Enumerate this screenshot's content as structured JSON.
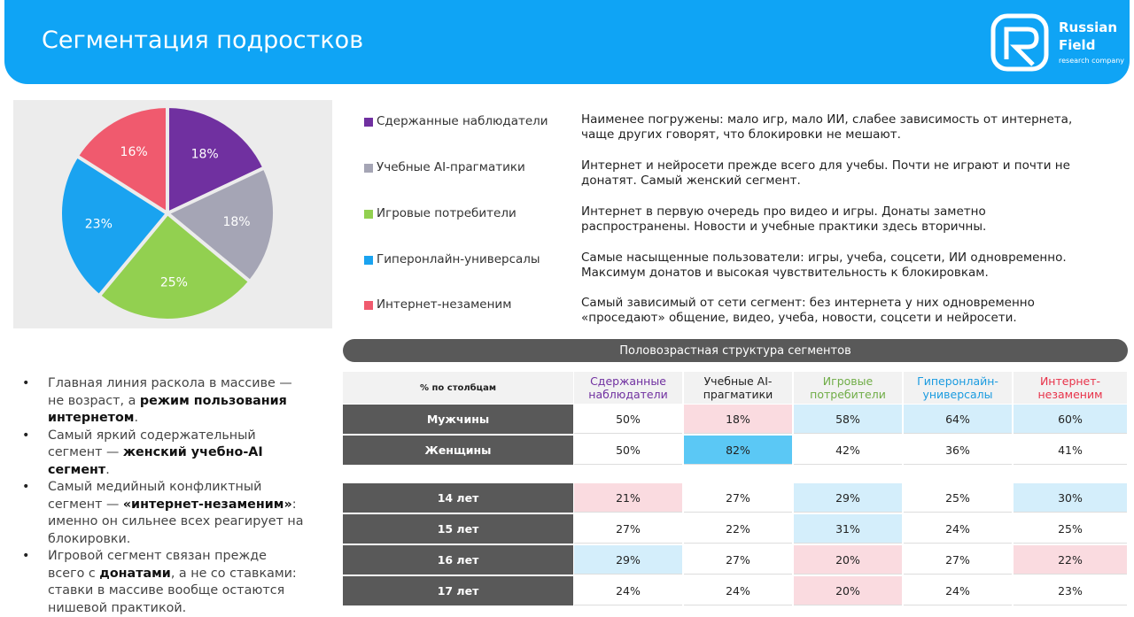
{
  "header": {
    "title": "Сегментация подростков"
  },
  "logo": {
    "line1": "Russian",
    "line2": "Field",
    "tagline": "research company"
  },
  "chart_data": {
    "type": "pie",
    "categories": [
      "Сдержанные наблюдатели",
      "Учебные AI-прагматики",
      "Игровые потребители",
      "Гиперонлайн-универсалы",
      "Интернет-незаменим"
    ],
    "values": [
      18,
      18,
      25,
      23,
      16
    ],
    "value_labels": [
      "18%",
      "18%",
      "25%",
      "23%",
      "16%"
    ],
    "colors": [
      "#7030a0",
      "#a5a5b5",
      "#92d050",
      "#1aa3f0",
      "#f05a6e"
    ]
  },
  "descriptions": [
    "Наименее погружены: мало игр, мало ИИ, слабее зависимость от интернета, чаще других говорят, что блокировки не мешают.",
    "Интернет и нейросети прежде всего для учебы. Почти не играют и почти не донатят. Самый женский сегмент.",
    "Интернет в первую очередь про видео и игры. Донаты заметно распространены. Новости и учебные практики здесь вторичны.",
    "Самые насыщенные пользователи: игры, учеба, соцсети, ИИ одновременно. Максимум донатов и высокая чувствительность к блокировкам.",
    "Самый зависимый от сети сегмент: без интернета у них одновременно «проседают» общение, видео, учеба, новости, соцсети и нейросети."
  ],
  "bullets": [
    [
      {
        "text": "Главная линия раскола в массиве — не возраст, а ",
        "bold": false
      },
      {
        "text": "режим пользования интернетом",
        "bold": true
      },
      {
        "text": ".",
        "bold": false
      }
    ],
    [
      {
        "text": "Самый яркий содержательный сегмент — ",
        "bold": false
      },
      {
        "text": "женский учебно-AI сегмент",
        "bold": true
      },
      {
        "text": ".",
        "bold": false
      }
    ],
    [
      {
        "text": "Самый медийный конфликтный сегмент — ",
        "bold": false
      },
      {
        "text": "«интернет-незаменим»",
        "bold": true
      },
      {
        "text": ": именно он сильнее всех реагирует на блокировки.",
        "bold": false
      }
    ],
    [
      {
        "text": "Игровой сегмент связан прежде всего с ",
        "bold": false
      },
      {
        "text": "донатами",
        "bold": true
      },
      {
        "text": ", а не со ставками: ставки в массиве вообще остаются нишевой практикой.",
        "bold": false
      }
    ]
  ],
  "table": {
    "title": "Половозрастная структура сегментов",
    "corner": "% по столбцам",
    "columns": [
      "Сдержанные наблюдатели",
      "Учебные AI-прагматики",
      "Игровые потребители",
      "Гиперонлайн-универсалы",
      "Интернет-незаменим"
    ],
    "column_colors": [
      "#7030a0",
      "#222222",
      "#70ad47",
      "#1a9be0",
      "#e8334a"
    ],
    "groups": [
      {
        "rows": [
          {
            "label": "Мужчины",
            "cells": [
              "50%",
              "18%",
              "58%",
              "64%",
              "60%"
            ],
            "fills": [
              null,
              "#fadbe0",
              "#d4eefb",
              "#d4eefb",
              "#d4eefb"
            ]
          },
          {
            "label": "Женщины",
            "cells": [
              "50%",
              "82%",
              "42%",
              "36%",
              "41%"
            ],
            "fills": [
              null,
              "#5bc8f5",
              null,
              null,
              null
            ]
          }
        ]
      },
      {
        "rows": [
          {
            "label": "14 лет",
            "cells": [
              "21%",
              "27%",
              "29%",
              "25%",
              "30%"
            ],
            "fills": [
              "#fadbe0",
              null,
              "#d4eefb",
              null,
              "#d4eefb"
            ]
          },
          {
            "label": "15 лет",
            "cells": [
              "27%",
              "22%",
              "31%",
              "24%",
              "25%"
            ],
            "fills": [
              null,
              null,
              "#d4eefb",
              null,
              null
            ]
          },
          {
            "label": "16 лет",
            "cells": [
              "29%",
              "27%",
              "20%",
              "27%",
              "22%"
            ],
            "fills": [
              "#d4eefb",
              null,
              "#fadbe0",
              null,
              "#fadbe0"
            ]
          },
          {
            "label": "17 лет",
            "cells": [
              "24%",
              "24%",
              "20%",
              "24%",
              "23%"
            ],
            "fills": [
              null,
              null,
              "#fadbe0",
              null,
              null
            ]
          }
        ]
      }
    ]
  }
}
